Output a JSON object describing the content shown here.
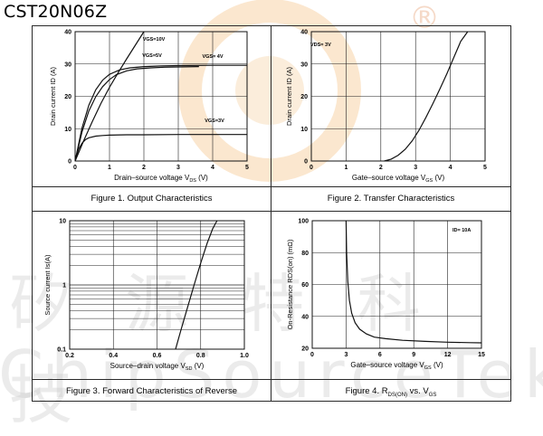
{
  "header": {
    "part_number": "CST20N06Z"
  },
  "watermark": {
    "registered_mark": "®",
    "cn_text": "矽 源 特 科 技",
    "en_text": "ChipSourceTek",
    "color": "#f5c08a"
  },
  "chart_data": [
    {
      "id": "fig1",
      "type": "line",
      "caption": "Figure 1. Output Characteristics",
      "xlabel": "Drain–source voltage V",
      "xlabel_sub": "DS",
      "xlabel_unit": " (V)",
      "ylabel": "Drain current ID (A)",
      "xlim": [
        0,
        5
      ],
      "ylim": [
        0,
        40
      ],
      "xticks": [
        0,
        1,
        2,
        3,
        4,
        5
      ],
      "yticks": [
        0,
        10,
        20,
        30,
        40
      ],
      "series": [
        {
          "name": "VGS=10V",
          "x": [
            0,
            0.25,
            0.5,
            0.75,
            1.0,
            1.25,
            1.5,
            1.75,
            2.0
          ],
          "y": [
            0,
            6.3,
            12.2,
            17.8,
            22.8,
            27.3,
            31.6,
            35.8,
            40
          ]
        },
        {
          "name": "VGS=5V",
          "x": [
            0,
            0.2,
            0.4,
            0.6,
            0.8,
            1.0,
            1.2,
            1.5,
            1.8,
            2.2,
            2.6,
            3.0,
            3.6
          ],
          "y": [
            0,
            9.0,
            15.5,
            19.9,
            23.0,
            25.2,
            26.7,
            27.9,
            28.5,
            28.8,
            29.0,
            29.1,
            29.2
          ]
        },
        {
          "name": "VGS= 4V",
          "x": [
            0,
            0.2,
            0.4,
            0.6,
            0.8,
            1.0,
            1.3,
            1.6,
            2.0,
            2.5,
            3.0,
            4.0,
            5.0
          ],
          "y": [
            0,
            10.2,
            17.3,
            22.0,
            25.0,
            26.8,
            28.2,
            28.8,
            29.2,
            29.4,
            29.5,
            29.6,
            29.6
          ]
        },
        {
          "name": "VGS=3V",
          "x": [
            0,
            0.1,
            0.2,
            0.3,
            0.4,
            0.6,
            0.8,
            1.0,
            1.5,
            2.0,
            3.0,
            4.0,
            5.0
          ],
          "y": [
            0,
            3.6,
            5.5,
            6.6,
            7.2,
            7.7,
            7.9,
            8.0,
            8.1,
            8.1,
            8.2,
            8.2,
            8.2
          ]
        }
      ]
    },
    {
      "id": "fig2",
      "type": "line",
      "caption": "Figure 2. Transfer Characteristics",
      "xlabel": "Gate–source voltage V",
      "xlabel_sub": "GS",
      "xlabel_unit": " (V)",
      "ylabel": "Drain current ID (A)",
      "annotation": "VDS= 3V",
      "xlim": [
        0,
        5
      ],
      "ylim": [
        0,
        40
      ],
      "xticks": [
        0,
        1,
        2,
        3,
        4,
        5
      ],
      "yticks": [
        0,
        10,
        20,
        30,
        40
      ],
      "series": [
        {
          "name": "",
          "x": [
            2.1,
            2.3,
            2.5,
            2.7,
            2.9,
            3.1,
            3.3,
            3.5,
            3.7,
            3.9,
            4.1,
            4.3,
            4.5
          ],
          "y": [
            0,
            0.6,
            1.8,
            3.6,
            6.2,
            9.5,
            13.5,
            17.8,
            22.3,
            27.0,
            32.0,
            37.0,
            40.0
          ]
        }
      ]
    },
    {
      "id": "fig3",
      "type": "line",
      "caption": "Figure 3. Forward Characteristics of Reverse",
      "xlabel": "Source–drain voltage V",
      "xlabel_sub": "SD",
      "xlabel_unit": " (V)",
      "ylabel": "Source current Is(A)",
      "xlim": [
        0.2,
        1.0
      ],
      "ylim": [
        0.1,
        10
      ],
      "yscale": "log",
      "xticks": [
        0.2,
        0.4,
        0.6,
        0.8,
        1.0
      ],
      "yticks": [
        0.1,
        1,
        10
      ],
      "series": [
        {
          "name": "",
          "x": [
            0.685,
            0.71,
            0.74,
            0.77,
            0.8,
            0.83,
            0.855,
            0.875
          ],
          "y": [
            0.1,
            0.2,
            0.45,
            1.0,
            2.2,
            4.5,
            7.5,
            10.0
          ]
        }
      ]
    },
    {
      "id": "fig4",
      "type": "line",
      "caption": "Figure 4. R",
      "caption_sub": "DS(ON)",
      "caption_tail": " vs. V",
      "caption_sub2": "GS",
      "xlabel": "Gate–source voltage V",
      "xlabel_sub": "GS",
      "xlabel_unit": " (V)",
      "ylabel": "On-Resistance RDS(on) (mΩ)",
      "annotation": "ID= 10A",
      "xlim": [
        0,
        15
      ],
      "ylim": [
        20,
        100
      ],
      "xticks": [
        0,
        3,
        6,
        9,
        12,
        15
      ],
      "yticks": [
        20,
        40,
        60,
        80,
        100
      ],
      "series": [
        {
          "name": "",
          "x": [
            3.0,
            3.05,
            3.15,
            3.3,
            3.5,
            3.8,
            4.2,
            4.8,
            5.5,
            6.5,
            8.0,
            10.0,
            12.0,
            14.0,
            15.0
          ],
          "y": [
            100,
            80,
            62,
            50,
            42,
            36,
            32,
            29,
            27,
            26,
            25,
            24.3,
            23.8,
            23.5,
            23.4
          ]
        }
      ]
    }
  ]
}
